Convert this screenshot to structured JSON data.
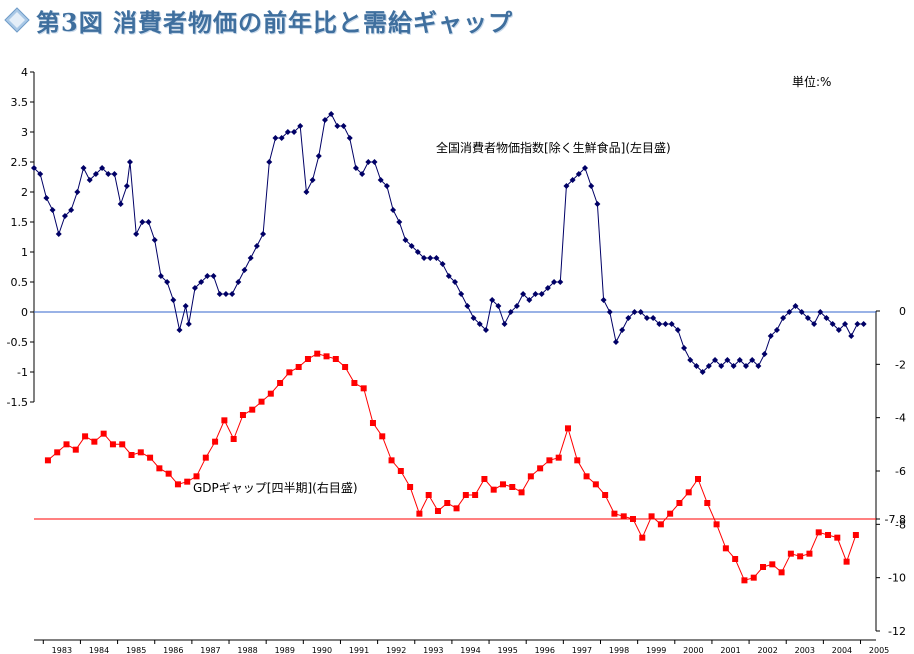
{
  "title": "第3図 消費者物価の前年比と需給ギャップ",
  "colors": {
    "cpi": "#000066",
    "gap": "#ff0000",
    "zero_line": "#3366cc",
    "gap_threshold": "#ff0000",
    "title": "#3f6f9e"
  },
  "chart_data": {
    "type": "line",
    "unit_label": "単位:%",
    "grid": false,
    "x_axis": {
      "type": "date",
      "range": [
        "1982-10",
        "2005-06"
      ],
      "tick_labels": [
        "1983",
        "1984",
        "1985",
        "1986",
        "1987",
        "1988",
        "1989",
        "1990",
        "1991",
        "1992",
        "1993",
        "1994",
        "1995",
        "1996",
        "1997",
        "1998",
        "1999",
        "2000",
        "2001",
        "2002",
        "2003",
        "2004",
        "2005"
      ]
    },
    "y_left": {
      "range": [
        -1.5,
        4
      ],
      "tick_labels": [
        "4",
        "3.5",
        "3",
        "2.5",
        "2",
        "1.5",
        "1",
        "0.5",
        "0",
        "-0.5",
        "-1",
        "-1.5"
      ]
    },
    "y_right": {
      "range": [
        -12,
        0
      ],
      "tick_labels": [
        "0",
        "-2",
        "-4",
        "-6",
        "-7.8",
        "-8",
        "-10",
        "-12"
      ]
    },
    "reference_lines": [
      {
        "axis": "left",
        "value": 0
      },
      {
        "axis": "right",
        "value": -7.8
      }
    ],
    "series": [
      {
        "name": "全国消費者物価指数[除く生鮮食品](左目盛)",
        "axis": "left",
        "marker": "diamond",
        "points": [
          [
            "1982-10",
            2.4
          ],
          [
            "1982-12",
            2.3
          ],
          [
            "1983-02",
            1.9
          ],
          [
            "1983-04",
            1.7
          ],
          [
            "1983-06",
            1.3
          ],
          [
            "1983-08",
            1.6
          ],
          [
            "1983-10",
            1.7
          ],
          [
            "1983-12",
            2.0
          ],
          [
            "1984-02",
            2.4
          ],
          [
            "1984-04",
            2.2
          ],
          [
            "1984-06",
            2.3
          ],
          [
            "1984-08",
            2.4
          ],
          [
            "1984-10",
            2.3
          ],
          [
            "1984-12",
            2.3
          ],
          [
            "1985-02",
            1.8
          ],
          [
            "1985-04",
            2.1
          ],
          [
            "1985-05",
            2.5
          ],
          [
            "1985-07",
            1.3
          ],
          [
            "1985-09",
            1.5
          ],
          [
            "1985-11",
            1.5
          ],
          [
            "1986-01",
            1.2
          ],
          [
            "1986-03",
            0.6
          ],
          [
            "1986-05",
            0.5
          ],
          [
            "1986-07",
            0.2
          ],
          [
            "1986-09",
            -0.3
          ],
          [
            "1986-11",
            0.1
          ],
          [
            "1986-12",
            -0.2
          ],
          [
            "1987-02",
            0.4
          ],
          [
            "1987-04",
            0.5
          ],
          [
            "1987-06",
            0.6
          ],
          [
            "1987-08",
            0.6
          ],
          [
            "1987-10",
            0.3
          ],
          [
            "1987-12",
            0.3
          ],
          [
            "1988-02",
            0.3
          ],
          [
            "1988-04",
            0.5
          ],
          [
            "1988-06",
            0.7
          ],
          [
            "1988-08",
            0.9
          ],
          [
            "1988-10",
            1.1
          ],
          [
            "1988-12",
            1.3
          ],
          [
            "1989-02",
            2.5
          ],
          [
            "1989-04",
            2.9
          ],
          [
            "1989-06",
            2.9
          ],
          [
            "1989-08",
            3.0
          ],
          [
            "1989-10",
            3.0
          ],
          [
            "1989-12",
            3.1
          ],
          [
            "1990-02",
            2.0
          ],
          [
            "1990-04",
            2.2
          ],
          [
            "1990-06",
            2.6
          ],
          [
            "1990-08",
            3.2
          ],
          [
            "1990-10",
            3.3
          ],
          [
            "1990-12",
            3.1
          ],
          [
            "1991-02",
            3.1
          ],
          [
            "1991-04",
            2.9
          ],
          [
            "1991-06",
            2.4
          ],
          [
            "1991-08",
            2.3
          ],
          [
            "1991-10",
            2.5
          ],
          [
            "1991-12",
            2.5
          ],
          [
            "1992-02",
            2.2
          ],
          [
            "1992-04",
            2.1
          ],
          [
            "1992-06",
            1.7
          ],
          [
            "1992-08",
            1.5
          ],
          [
            "1992-10",
            1.2
          ],
          [
            "1992-12",
            1.1
          ],
          [
            "1993-02",
            1.0
          ],
          [
            "1993-04",
            0.9
          ],
          [
            "1993-06",
            0.9
          ],
          [
            "1993-08",
            0.9
          ],
          [
            "1993-10",
            0.8
          ],
          [
            "1993-12",
            0.6
          ],
          [
            "1994-02",
            0.5
          ],
          [
            "1994-04",
            0.3
          ],
          [
            "1994-06",
            0.1
          ],
          [
            "1994-08",
            -0.1
          ],
          [
            "1994-10",
            -0.2
          ],
          [
            "1994-12",
            -0.3
          ],
          [
            "1995-02",
            0.2
          ],
          [
            "1995-04",
            0.1
          ],
          [
            "1995-06",
            -0.2
          ],
          [
            "1995-08",
            0.0
          ],
          [
            "1995-10",
            0.1
          ],
          [
            "1995-12",
            0.3
          ],
          [
            "1996-02",
            0.2
          ],
          [
            "1996-04",
            0.3
          ],
          [
            "1996-06",
            0.3
          ],
          [
            "1996-08",
            0.4
          ],
          [
            "1996-10",
            0.5
          ],
          [
            "1996-12",
            0.5
          ],
          [
            "1997-02",
            2.1
          ],
          [
            "1997-04",
            2.2
          ],
          [
            "1997-06",
            2.3
          ],
          [
            "1997-08",
            2.4
          ],
          [
            "1997-10",
            2.1
          ],
          [
            "1997-12",
            1.8
          ],
          [
            "1998-02",
            0.2
          ],
          [
            "1998-04",
            0.0
          ],
          [
            "1998-06",
            -0.5
          ],
          [
            "1998-08",
            -0.3
          ],
          [
            "1998-10",
            -0.1
          ],
          [
            "1998-12",
            0.0
          ],
          [
            "1999-02",
            0.0
          ],
          [
            "1999-04",
            -0.1
          ],
          [
            "1999-06",
            -0.1
          ],
          [
            "1999-08",
            -0.2
          ],
          [
            "1999-10",
            -0.2
          ],
          [
            "1999-12",
            -0.2
          ],
          [
            "2000-02",
            -0.3
          ],
          [
            "2000-04",
            -0.6
          ],
          [
            "2000-06",
            -0.8
          ],
          [
            "2000-08",
            -0.9
          ],
          [
            "2000-10",
            -1.0
          ],
          [
            "2000-12",
            -0.9
          ],
          [
            "2001-02",
            -0.8
          ],
          [
            "2001-04",
            -0.9
          ],
          [
            "2001-06",
            -0.8
          ],
          [
            "2001-08",
            -0.9
          ],
          [
            "2001-10",
            -0.8
          ],
          [
            "2001-12",
            -0.9
          ],
          [
            "2002-02",
            -0.8
          ],
          [
            "2002-04",
            -0.9
          ],
          [
            "2002-06",
            -0.7
          ],
          [
            "2002-08",
            -0.4
          ],
          [
            "2002-10",
            -0.3
          ],
          [
            "2002-12",
            -0.1
          ],
          [
            "2003-02",
            0.0
          ],
          [
            "2003-04",
            0.1
          ],
          [
            "2003-06",
            0.0
          ],
          [
            "2003-08",
            -0.1
          ],
          [
            "2003-10",
            -0.2
          ],
          [
            "2003-12",
            0.0
          ],
          [
            "2004-02",
            -0.1
          ],
          [
            "2004-04",
            -0.2
          ],
          [
            "2004-06",
            -0.3
          ],
          [
            "2004-08",
            -0.2
          ],
          [
            "2004-10",
            -0.4
          ],
          [
            "2004-12",
            -0.2
          ],
          [
            "2005-02",
            -0.2
          ]
        ]
      },
      {
        "name": "GDPギャップ[四半期](右目盛)",
        "axis": "right",
        "marker": "square",
        "points": [
          [
            "1983-Q1",
            -5.6
          ],
          [
            "1983-Q2",
            -5.3
          ],
          [
            "1983-Q3",
            -5.0
          ],
          [
            "1983-Q4",
            -5.2
          ],
          [
            "1984-Q1",
            -4.7
          ],
          [
            "1984-Q2",
            -4.9
          ],
          [
            "1984-Q3",
            -4.6
          ],
          [
            "1984-Q4",
            -5.0
          ],
          [
            "1985-Q1",
            -5.0
          ],
          [
            "1985-Q2",
            -5.4
          ],
          [
            "1985-Q3",
            -5.3
          ],
          [
            "1985-Q4",
            -5.5
          ],
          [
            "1986-Q1",
            -5.9
          ],
          [
            "1986-Q2",
            -6.1
          ],
          [
            "1986-Q3",
            -6.5
          ],
          [
            "1986-Q4",
            -6.4
          ],
          [
            "1987-Q1",
            -6.2
          ],
          [
            "1987-Q2",
            -5.5
          ],
          [
            "1987-Q3",
            -4.9
          ],
          [
            "1987-Q4",
            -4.1
          ],
          [
            "1988-Q1",
            -4.8
          ],
          [
            "1988-Q2",
            -3.9
          ],
          [
            "1988-Q3",
            -3.7
          ],
          [
            "1988-Q4",
            -3.4
          ],
          [
            "1989-Q1",
            -3.1
          ],
          [
            "1989-Q2",
            -2.7
          ],
          [
            "1989-Q3",
            -2.3
          ],
          [
            "1989-Q4",
            -2.1
          ],
          [
            "1990-Q1",
            -1.8
          ],
          [
            "1990-Q2",
            -1.6
          ],
          [
            "1990-Q3",
            -1.7
          ],
          [
            "1990-Q4",
            -1.8
          ],
          [
            "1991-Q1",
            -2.1
          ],
          [
            "1991-Q2",
            -2.7
          ],
          [
            "1991-Q3",
            -2.9
          ],
          [
            "1991-Q4",
            -4.2
          ],
          [
            "1992-Q1",
            -4.7
          ],
          [
            "1992-Q2",
            -5.6
          ],
          [
            "1992-Q3",
            -6.0
          ],
          [
            "1992-Q4",
            -6.6
          ],
          [
            "1993-Q1",
            -7.6
          ],
          [
            "1993-Q2",
            -6.9
          ],
          [
            "1993-Q3",
            -7.5
          ],
          [
            "1993-Q4",
            -7.2
          ],
          [
            "1994-Q1",
            -7.4
          ],
          [
            "1994-Q2",
            -6.9
          ],
          [
            "1994-Q3",
            -6.9
          ],
          [
            "1994-Q4",
            -6.3
          ],
          [
            "1995-Q1",
            -6.7
          ],
          [
            "1995-Q2",
            -6.5
          ],
          [
            "1995-Q3",
            -6.6
          ],
          [
            "1995-Q4",
            -6.8
          ],
          [
            "1996-Q1",
            -6.2
          ],
          [
            "1996-Q2",
            -5.9
          ],
          [
            "1996-Q3",
            -5.6
          ],
          [
            "1996-Q4",
            -5.5
          ],
          [
            "1997-Q1",
            -4.4
          ],
          [
            "1997-Q2",
            -5.6
          ],
          [
            "1997-Q3",
            -6.2
          ],
          [
            "1997-Q4",
            -6.5
          ],
          [
            "1998-Q1",
            -6.9
          ],
          [
            "1998-Q2",
            -7.6
          ],
          [
            "1998-Q3",
            -7.7
          ],
          [
            "1998-Q4",
            -7.8
          ],
          [
            "1999-Q1",
            -8.5
          ],
          [
            "1999-Q2",
            -7.7
          ],
          [
            "1999-Q3",
            -8.0
          ],
          [
            "1999-Q4",
            -7.6
          ],
          [
            "2000-Q1",
            -7.2
          ],
          [
            "2000-Q2",
            -6.8
          ],
          [
            "2000-Q3",
            -6.3
          ],
          [
            "2000-Q4",
            -7.2
          ],
          [
            "2001-Q1",
            -8.0
          ],
          [
            "2001-Q2",
            -8.9
          ],
          [
            "2001-Q3",
            -9.3
          ],
          [
            "2001-Q4",
            -10.1
          ],
          [
            "2002-Q1",
            -10.0
          ],
          [
            "2002-Q2",
            -9.6
          ],
          [
            "2002-Q3",
            -9.5
          ],
          [
            "2002-Q4",
            -9.8
          ],
          [
            "2003-Q1",
            -9.1
          ],
          [
            "2003-Q2",
            -9.2
          ],
          [
            "2003-Q3",
            -9.1
          ],
          [
            "2003-Q4",
            -8.3
          ],
          [
            "2004-Q1",
            -8.4
          ],
          [
            "2004-Q2",
            -8.5
          ],
          [
            "2004-Q3",
            -9.4
          ],
          [
            "2004-Q4",
            -8.4
          ]
        ]
      }
    ],
    "annotations": [
      {
        "text": "全国消費者物価指数[除く生鮮食品](左目盛)",
        "series": 0
      },
      {
        "text": "GDPギャップ[四半期](右目盛)",
        "series": 1
      }
    ]
  }
}
